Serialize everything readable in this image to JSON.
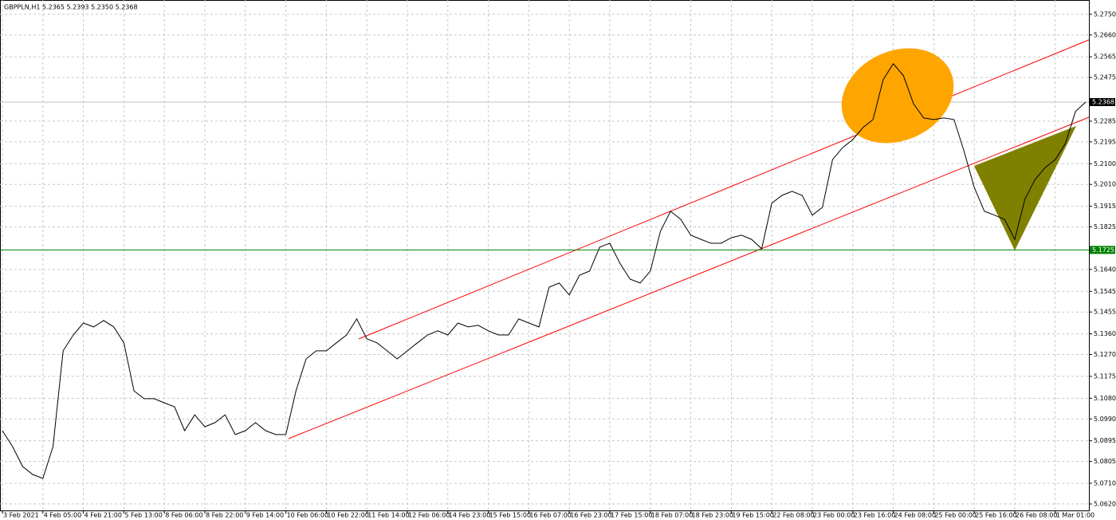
{
  "chart_data": {
    "type": "line",
    "title": "GBPPLN,H1  5.2365 5.2393 5.2350 5.2368",
    "categories": [
      "3 Feb 2021",
      null,
      null,
      null,
      "4 Feb 05:00",
      null,
      null,
      null,
      "4 Feb 21:00",
      null,
      null,
      null,
      "5 Feb 13:00",
      null,
      null,
      null,
      "8 Feb 06:00",
      null,
      null,
      null,
      "8 Feb 22:00",
      null,
      null,
      null,
      "9 Feb 14:00",
      null,
      null,
      null,
      "10 Feb 06:00",
      null,
      null,
      null,
      "10 Feb 22:00",
      null,
      null,
      null,
      "11 Feb 14:00",
      null,
      null,
      null,
      "12 Feb 06:00",
      null,
      null,
      null,
      "14 Feb 23:00",
      null,
      null,
      null,
      "15 Feb 15:00",
      null,
      null,
      null,
      "16 Feb 07:00",
      null,
      null,
      null,
      "16 Feb 23:00",
      null,
      null,
      null,
      "17 Feb 15:00",
      null,
      null,
      null,
      "18 Feb 07:00",
      null,
      null,
      null,
      "18 Feb 23:00",
      null,
      null,
      null,
      "19 Feb 15:00",
      null,
      null,
      null,
      "22 Feb 08:00",
      null,
      null,
      null,
      "23 Feb 00:00",
      null,
      null,
      null,
      "23 Feb 16:00",
      null,
      null,
      null,
      "24 Feb 08:00",
      null,
      null,
      null,
      "25 Feb 00:00",
      null,
      null,
      null,
      "25 Feb 16:00",
      null,
      null,
      null,
      "26 Feb 08:00",
      null,
      null,
      null,
      "1 Mar 01:00",
      null,
      null,
      null
    ],
    "values": [
      5.0939,
      5.087,
      5.0783,
      5.0748,
      5.0731,
      5.087,
      5.1286,
      5.1355,
      5.1407,
      5.139,
      5.1418,
      5.139,
      5.1321,
      5.1112,
      5.1078,
      5.1078,
      5.106,
      5.1043,
      5.0939,
      5.1008,
      5.0956,
      5.0974,
      5.1008,
      5.0922,
      5.0939,
      5.0974,
      5.0939,
      5.0922,
      5.0922,
      5.1112,
      5.1251,
      5.1286,
      5.1286,
      5.1321,
      5.1355,
      5.1425,
      5.1338,
      5.1321,
      5.1286,
      5.1251,
      5.1286,
      5.1321,
      5.1355,
      5.1373,
      5.1355,
      5.1407,
      5.139,
      5.1397,
      5.1373,
      5.1355,
      5.1355,
      5.1425,
      5.1407,
      5.139,
      5.1563,
      5.1581,
      5.1529,
      5.1615,
      5.1633,
      5.1737,
      5.1754,
      5.1667,
      5.1598,
      5.1581,
      5.1633,
      5.1806,
      5.1893,
      5.1858,
      5.1789,
      5.1771,
      5.1754,
      5.1754,
      5.1778,
      5.1789,
      5.1771,
      5.173,
      5.1928,
      5.1962,
      5.198,
      5.1962,
      5.1876,
      5.191,
      5.2118,
      5.217,
      5.2205,
      5.2257,
      5.2292,
      5.2465,
      5.2535,
      5.2483,
      5.2361,
      5.2299,
      5.2292,
      5.2299,
      5.2292,
      5.2153,
      5.1997,
      5.1893,
      5.1876,
      5.1858,
      5.1771,
      5.1945,
      5.2031,
      5.2083,
      5.2118,
      5.2188,
      5.2327,
      5.2368
    ],
    "color": "#000000",
    "ylim": [
      5.0592,
      5.2812
    ],
    "yticks": [
      {
        "value": 5.275,
        "label": "5.2750"
      },
      {
        "value": 5.266,
        "label": "5.2660"
      },
      5.2565,
      5.2475,
      5.2285,
      5.2195,
      {
        "value": 5.21,
        "label": "5.2100"
      },
      {
        "value": 5.201,
        "label": "5.2010"
      },
      5.1915,
      5.1825,
      {
        "value": 5.164,
        "label": "5.1640"
      },
      5.1545,
      5.1455,
      {
        "value": 5.136,
        "label": "5.1360"
      },
      {
        "value": 5.127,
        "label": "5.1270"
      },
      5.1175,
      {
        "value": 5.108,
        "label": "5.1080"
      },
      {
        "value": 5.099,
        "label": "5.0990"
      },
      5.0895,
      5.0805,
      {
        "value": 5.071,
        "label": "5.0710"
      },
      {
        "value": 5.062,
        "label": "5.0620"
      }
    ],
    "grid": true,
    "last_price": 5.2368,
    "hline": 5.1725,
    "hline_color": "#008000"
  }
}
